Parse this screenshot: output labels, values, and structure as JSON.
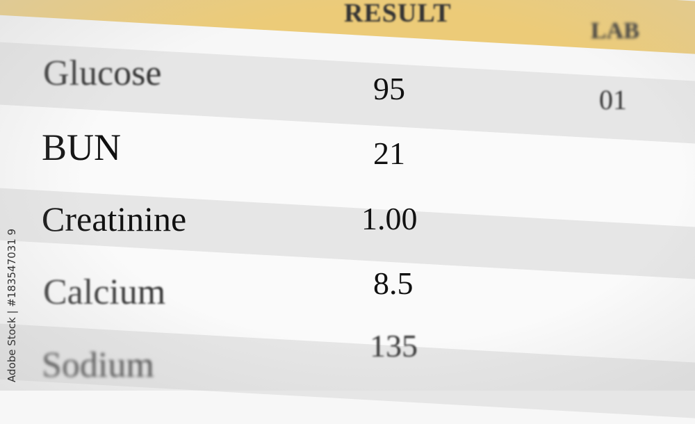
{
  "table": {
    "columns": [
      "RESULT",
      "LAB"
    ],
    "rows": [
      {
        "test": "Glucose",
        "result": "95",
        "lab": "01"
      },
      {
        "test": "BUN",
        "result": "21",
        "lab": ""
      },
      {
        "test": "Creatinine",
        "result": "1.00",
        "lab": ""
      },
      {
        "test": "Calcium",
        "result": "8.5",
        "lab": ""
      },
      {
        "test": "Sodium",
        "result": "135",
        "lab": ""
      }
    ]
  },
  "colors": {
    "header": "#eccb78",
    "row_alt": "#e6e6e6"
  },
  "watermark": "Adobe Stock | #183547031 9"
}
